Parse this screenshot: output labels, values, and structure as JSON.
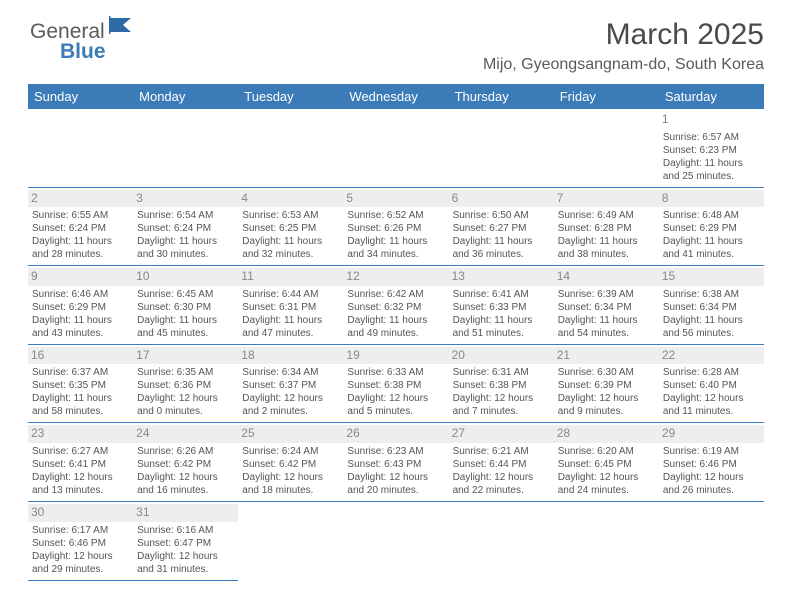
{
  "logo": {
    "text1": "General",
    "text2": "Blue"
  },
  "header": {
    "month_title": "March 2025",
    "location": "Mijo, Gyeongsangnam-do, South Korea"
  },
  "day_headers": [
    "Sunday",
    "Monday",
    "Tuesday",
    "Wednesday",
    "Thursday",
    "Friday",
    "Saturday"
  ],
  "colors": {
    "header_bg": "#3b7bb8",
    "header_fg": "#ffffff"
  },
  "weeks": [
    [
      null,
      null,
      null,
      null,
      null,
      null,
      {
        "n": "1",
        "sunrise": "Sunrise: 6:57 AM",
        "sunset": "Sunset: 6:23 PM",
        "day1": "Daylight: 11 hours",
        "day2": "and 25 minutes."
      }
    ],
    [
      {
        "n": "2",
        "sunrise": "Sunrise: 6:55 AM",
        "sunset": "Sunset: 6:24 PM",
        "day1": "Daylight: 11 hours",
        "day2": "and 28 minutes."
      },
      {
        "n": "3",
        "sunrise": "Sunrise: 6:54 AM",
        "sunset": "Sunset: 6:24 PM",
        "day1": "Daylight: 11 hours",
        "day2": "and 30 minutes."
      },
      {
        "n": "4",
        "sunrise": "Sunrise: 6:53 AM",
        "sunset": "Sunset: 6:25 PM",
        "day1": "Daylight: 11 hours",
        "day2": "and 32 minutes."
      },
      {
        "n": "5",
        "sunrise": "Sunrise: 6:52 AM",
        "sunset": "Sunset: 6:26 PM",
        "day1": "Daylight: 11 hours",
        "day2": "and 34 minutes."
      },
      {
        "n": "6",
        "sunrise": "Sunrise: 6:50 AM",
        "sunset": "Sunset: 6:27 PM",
        "day1": "Daylight: 11 hours",
        "day2": "and 36 minutes."
      },
      {
        "n": "7",
        "sunrise": "Sunrise: 6:49 AM",
        "sunset": "Sunset: 6:28 PM",
        "day1": "Daylight: 11 hours",
        "day2": "and 38 minutes."
      },
      {
        "n": "8",
        "sunrise": "Sunrise: 6:48 AM",
        "sunset": "Sunset: 6:29 PM",
        "day1": "Daylight: 11 hours",
        "day2": "and 41 minutes."
      }
    ],
    [
      {
        "n": "9",
        "sunrise": "Sunrise: 6:46 AM",
        "sunset": "Sunset: 6:29 PM",
        "day1": "Daylight: 11 hours",
        "day2": "and 43 minutes."
      },
      {
        "n": "10",
        "sunrise": "Sunrise: 6:45 AM",
        "sunset": "Sunset: 6:30 PM",
        "day1": "Daylight: 11 hours",
        "day2": "and 45 minutes."
      },
      {
        "n": "11",
        "sunrise": "Sunrise: 6:44 AM",
        "sunset": "Sunset: 6:31 PM",
        "day1": "Daylight: 11 hours",
        "day2": "and 47 minutes."
      },
      {
        "n": "12",
        "sunrise": "Sunrise: 6:42 AM",
        "sunset": "Sunset: 6:32 PM",
        "day1": "Daylight: 11 hours",
        "day2": "and 49 minutes."
      },
      {
        "n": "13",
        "sunrise": "Sunrise: 6:41 AM",
        "sunset": "Sunset: 6:33 PM",
        "day1": "Daylight: 11 hours",
        "day2": "and 51 minutes."
      },
      {
        "n": "14",
        "sunrise": "Sunrise: 6:39 AM",
        "sunset": "Sunset: 6:34 PM",
        "day1": "Daylight: 11 hours",
        "day2": "and 54 minutes."
      },
      {
        "n": "15",
        "sunrise": "Sunrise: 6:38 AM",
        "sunset": "Sunset: 6:34 PM",
        "day1": "Daylight: 11 hours",
        "day2": "and 56 minutes."
      }
    ],
    [
      {
        "n": "16",
        "sunrise": "Sunrise: 6:37 AM",
        "sunset": "Sunset: 6:35 PM",
        "day1": "Daylight: 11 hours",
        "day2": "and 58 minutes."
      },
      {
        "n": "17",
        "sunrise": "Sunrise: 6:35 AM",
        "sunset": "Sunset: 6:36 PM",
        "day1": "Daylight: 12 hours",
        "day2": "and 0 minutes."
      },
      {
        "n": "18",
        "sunrise": "Sunrise: 6:34 AM",
        "sunset": "Sunset: 6:37 PM",
        "day1": "Daylight: 12 hours",
        "day2": "and 2 minutes."
      },
      {
        "n": "19",
        "sunrise": "Sunrise: 6:33 AM",
        "sunset": "Sunset: 6:38 PM",
        "day1": "Daylight: 12 hours",
        "day2": "and 5 minutes."
      },
      {
        "n": "20",
        "sunrise": "Sunrise: 6:31 AM",
        "sunset": "Sunset: 6:38 PM",
        "day1": "Daylight: 12 hours",
        "day2": "and 7 minutes."
      },
      {
        "n": "21",
        "sunrise": "Sunrise: 6:30 AM",
        "sunset": "Sunset: 6:39 PM",
        "day1": "Daylight: 12 hours",
        "day2": "and 9 minutes."
      },
      {
        "n": "22",
        "sunrise": "Sunrise: 6:28 AM",
        "sunset": "Sunset: 6:40 PM",
        "day1": "Daylight: 12 hours",
        "day2": "and 11 minutes."
      }
    ],
    [
      {
        "n": "23",
        "sunrise": "Sunrise: 6:27 AM",
        "sunset": "Sunset: 6:41 PM",
        "day1": "Daylight: 12 hours",
        "day2": "and 13 minutes."
      },
      {
        "n": "24",
        "sunrise": "Sunrise: 6:26 AM",
        "sunset": "Sunset: 6:42 PM",
        "day1": "Daylight: 12 hours",
        "day2": "and 16 minutes."
      },
      {
        "n": "25",
        "sunrise": "Sunrise: 6:24 AM",
        "sunset": "Sunset: 6:42 PM",
        "day1": "Daylight: 12 hours",
        "day2": "and 18 minutes."
      },
      {
        "n": "26",
        "sunrise": "Sunrise: 6:23 AM",
        "sunset": "Sunset: 6:43 PM",
        "day1": "Daylight: 12 hours",
        "day2": "and 20 minutes."
      },
      {
        "n": "27",
        "sunrise": "Sunrise: 6:21 AM",
        "sunset": "Sunset: 6:44 PM",
        "day1": "Daylight: 12 hours",
        "day2": "and 22 minutes."
      },
      {
        "n": "28",
        "sunrise": "Sunrise: 6:20 AM",
        "sunset": "Sunset: 6:45 PM",
        "day1": "Daylight: 12 hours",
        "day2": "and 24 minutes."
      },
      {
        "n": "29",
        "sunrise": "Sunrise: 6:19 AM",
        "sunset": "Sunset: 6:46 PM",
        "day1": "Daylight: 12 hours",
        "day2": "and 26 minutes."
      }
    ],
    [
      {
        "n": "30",
        "sunrise": "Sunrise: 6:17 AM",
        "sunset": "Sunset: 6:46 PM",
        "day1": "Daylight: 12 hours",
        "day2": "and 29 minutes."
      },
      {
        "n": "31",
        "sunrise": "Sunrise: 6:16 AM",
        "sunset": "Sunset: 6:47 PM",
        "day1": "Daylight: 12 hours",
        "day2": "and 31 minutes."
      },
      null,
      null,
      null,
      null,
      null
    ]
  ]
}
